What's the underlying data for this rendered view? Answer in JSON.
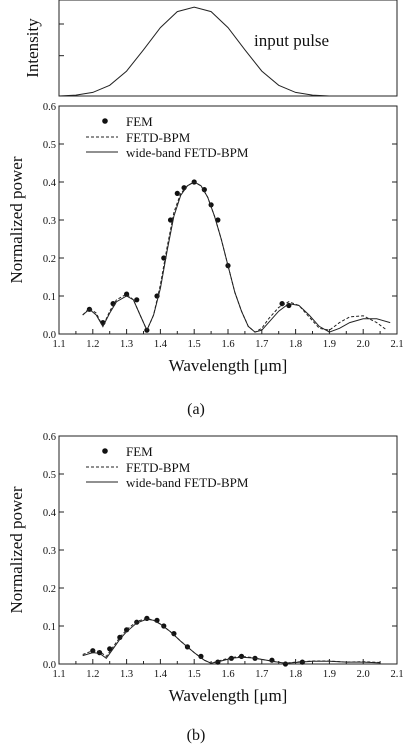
{
  "chart_data": [
    {
      "type": "line",
      "ylabel": "Intensity",
      "annotation": "input pulse",
      "xlim": [
        1.1,
        2.1
      ],
      "series": [
        {
          "x": [
            1.1,
            1.15,
            1.2,
            1.25,
            1.3,
            1.35,
            1.4,
            1.45,
            1.5,
            1.55,
            1.6,
            1.65,
            1.7,
            1.75,
            1.8,
            1.85,
            1.9,
            1.95,
            2.0,
            2.05,
            2.1
          ],
          "values": [
            0.0,
            0.01,
            0.04,
            0.12,
            0.28,
            0.52,
            0.77,
            0.95,
            1.0,
            0.95,
            0.77,
            0.52,
            0.28,
            0.12,
            0.04,
            0.01,
            0.0,
            0.0,
            0.0,
            0.0,
            0.0
          ]
        }
      ]
    },
    {
      "type": "line",
      "xlabel": "Wavelength [μm]",
      "ylabel": "Normalized power",
      "xlim": [
        1.1,
        2.1
      ],
      "ylim": [
        0,
        0.6
      ],
      "xticks": [
        "1.1",
        "1.2",
        "1.3",
        "1.4",
        "1.5",
        "1.6",
        "1.7",
        "1.8",
        "1.9",
        "2.0",
        "2.1"
      ],
      "yticks": [
        "0.0",
        "0.1",
        "0.2",
        "0.3",
        "0.4",
        "0.5",
        "0.6"
      ],
      "caption": "(a)",
      "series": [
        {
          "name": "FEM",
          "style": "dots",
          "x": [
            1.19,
            1.23,
            1.26,
            1.3,
            1.33,
            1.36,
            1.39,
            1.41,
            1.43,
            1.45,
            1.47,
            1.5,
            1.53,
            1.55,
            1.57,
            1.6,
            1.76,
            1.78
          ],
          "values": [
            0.065,
            0.03,
            0.08,
            0.105,
            0.09,
            0.01,
            0.1,
            0.2,
            0.3,
            0.37,
            0.385,
            0.4,
            0.38,
            0.34,
            0.3,
            0.18,
            0.08,
            0.075
          ]
        },
        {
          "name": "FETD-BPM",
          "style": "dashed",
          "x": [
            1.17,
            1.19,
            1.21,
            1.23,
            1.25,
            1.27,
            1.3,
            1.32,
            1.34,
            1.36,
            1.38,
            1.4,
            1.42,
            1.44,
            1.46,
            1.48,
            1.5,
            1.52,
            1.54,
            1.56,
            1.58,
            1.6,
            1.62,
            1.64,
            1.66,
            1.68,
            1.7,
            1.72,
            1.75,
            1.78,
            1.81,
            1.84,
            1.87,
            1.9,
            1.93,
            1.96,
            2.0,
            2.04,
            2.07
          ],
          "values": [
            0.05,
            0.068,
            0.055,
            0.02,
            0.06,
            0.09,
            0.105,
            0.09,
            0.05,
            0.01,
            0.05,
            0.13,
            0.23,
            0.32,
            0.37,
            0.39,
            0.4,
            0.39,
            0.36,
            0.31,
            0.25,
            0.18,
            0.11,
            0.06,
            0.02,
            0.005,
            0.015,
            0.04,
            0.07,
            0.085,
            0.075,
            0.045,
            0.015,
            0.01,
            0.03,
            0.045,
            0.048,
            0.03,
            0.01
          ]
        },
        {
          "name": "wide-band FETD-BPM",
          "style": "solid",
          "x": [
            1.17,
            1.19,
            1.21,
            1.23,
            1.25,
            1.27,
            1.3,
            1.32,
            1.34,
            1.36,
            1.38,
            1.4,
            1.42,
            1.44,
            1.46,
            1.48,
            1.5,
            1.52,
            1.54,
            1.56,
            1.58,
            1.6,
            1.62,
            1.64,
            1.66,
            1.68,
            1.7,
            1.72,
            1.75,
            1.78,
            1.81,
            1.84,
            1.87,
            1.9,
            1.93,
            1.96,
            2.0,
            2.04,
            2.08
          ],
          "values": [
            0.05,
            0.065,
            0.05,
            0.02,
            0.055,
            0.085,
            0.1,
            0.09,
            0.05,
            0.01,
            0.05,
            0.12,
            0.22,
            0.31,
            0.365,
            0.39,
            0.4,
            0.39,
            0.36,
            0.31,
            0.25,
            0.18,
            0.11,
            0.06,
            0.02,
            0.005,
            0.01,
            0.03,
            0.06,
            0.08,
            0.075,
            0.05,
            0.02,
            0.005,
            0.015,
            0.03,
            0.04,
            0.04,
            0.03
          ]
        }
      ]
    },
    {
      "type": "line",
      "xlabel": "Wavelength [μm]",
      "ylabel": "Normalized power",
      "xlim": [
        1.1,
        2.1
      ],
      "ylim": [
        0,
        0.6
      ],
      "xticks": [
        "1.1",
        "1.2",
        "1.3",
        "1.4",
        "1.5",
        "1.6",
        "1.7",
        "1.8",
        "1.9",
        "2.0",
        "2.1"
      ],
      "yticks": [
        "0.0",
        "0.1",
        "0.2",
        "0.3",
        "0.4",
        "0.5",
        "0.6"
      ],
      "caption": "(b)",
      "series": [
        {
          "name": "FEM",
          "style": "dots",
          "x": [
            1.2,
            1.22,
            1.25,
            1.28,
            1.3,
            1.33,
            1.36,
            1.39,
            1.41,
            1.44,
            1.48,
            1.52,
            1.57,
            1.61,
            1.64,
            1.68,
            1.73,
            1.77,
            1.82
          ],
          "values": [
            0.035,
            0.03,
            0.04,
            0.07,
            0.09,
            0.11,
            0.12,
            0.115,
            0.1,
            0.08,
            0.045,
            0.02,
            0.005,
            0.015,
            0.02,
            0.015,
            0.01,
            0.0,
            0.005
          ]
        },
        {
          "name": "FETD-BPM",
          "style": "dashed",
          "x": [
            1.17,
            1.2,
            1.22,
            1.24,
            1.26,
            1.28,
            1.3,
            1.33,
            1.36,
            1.38,
            1.4,
            1.43,
            1.46,
            1.5,
            1.53,
            1.55,
            1.58,
            1.61,
            1.64,
            1.67,
            1.7,
            1.74,
            1.77,
            1.8,
            1.85,
            1.9,
            1.95,
            2.0,
            2.05
          ],
          "values": [
            0.025,
            0.035,
            0.033,
            0.02,
            0.045,
            0.07,
            0.09,
            0.112,
            0.12,
            0.115,
            0.105,
            0.085,
            0.06,
            0.03,
            0.01,
            0.002,
            0.01,
            0.017,
            0.02,
            0.017,
            0.012,
            0.006,
            0.002,
            0.005,
            0.008,
            0.008,
            0.005,
            0.006,
            0.004
          ]
        },
        {
          "name": "wide-band FETD-BPM",
          "style": "solid",
          "x": [
            1.17,
            1.2,
            1.22,
            1.24,
            1.26,
            1.28,
            1.3,
            1.33,
            1.36,
            1.38,
            1.4,
            1.43,
            1.46,
            1.5,
            1.53,
            1.55,
            1.58,
            1.61,
            1.64,
            1.67,
            1.7,
            1.74,
            1.77,
            1.8,
            1.85,
            1.9,
            1.95,
            2.0,
            2.05
          ],
          "values": [
            0.022,
            0.03,
            0.028,
            0.015,
            0.04,
            0.065,
            0.085,
            0.108,
            0.118,
            0.115,
            0.105,
            0.085,
            0.06,
            0.03,
            0.01,
            0.002,
            0.008,
            0.015,
            0.018,
            0.016,
            0.012,
            0.006,
            0.002,
            0.004,
            0.007,
            0.007,
            0.005,
            0.005,
            0.003
          ]
        }
      ]
    }
  ]
}
